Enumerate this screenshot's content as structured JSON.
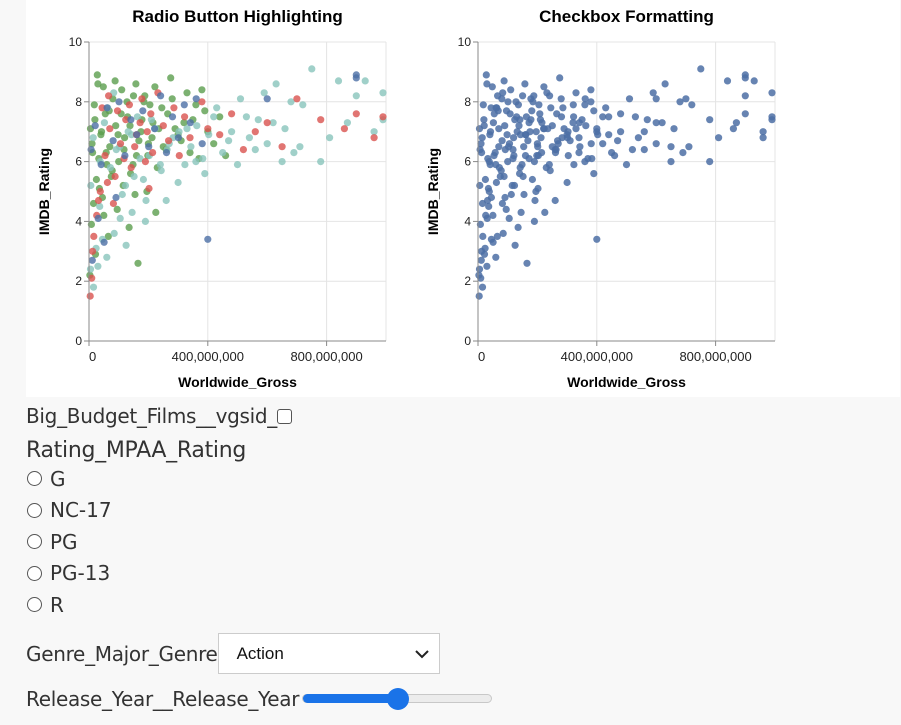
{
  "chart_data": [
    {
      "type": "scatter",
      "title": "Radio Button Highlighting",
      "xlabel": "Worldwide_Gross",
      "ylabel": "IMDB_Rating",
      "xlim": [
        0,
        1000000000
      ],
      "ylim": [
        0,
        10
      ],
      "x_ticks": [
        0,
        400000000,
        800000000
      ],
      "x_tick_labels": [
        "0",
        "400,000,000",
        "800,000,000"
      ],
      "y_ticks": [
        0,
        2,
        4,
        6,
        8,
        10
      ],
      "y_tick_labels": [
        "0",
        "2",
        "4",
        "6",
        "8",
        "10"
      ],
      "grid": true,
      "colored_by": "Rating_MPAA_Rating",
      "colors": [
        "#5b9e4d",
        "#88c4bc",
        "#d9534f",
        "#4c6fa5"
      ],
      "opacity": 0.8,
      "series": [
        {
          "color": "#5b9e4d",
          "points": [
            [
              5000000,
              7.1
            ],
            [
              12000000,
              6.3
            ],
            [
              18000000,
              7.9
            ],
            [
              25000000,
              5.4
            ],
            [
              30000000,
              8.6
            ],
            [
              40000000,
              6.9
            ],
            [
              45000000,
              4.8
            ],
            [
              55000000,
              7.6
            ],
            [
              60000000,
              5.9
            ],
            [
              70000000,
              6.5
            ],
            [
              80000000,
              8.1
            ],
            [
              90000000,
              7.2
            ],
            [
              100000000,
              6.0
            ],
            [
              110000000,
              8.4
            ],
            [
              120000000,
              6.8
            ],
            [
              130000000,
              7.5
            ],
            [
              140000000,
              5.6
            ],
            [
              150000000,
              8.2
            ],
            [
              160000000,
              6.2
            ],
            [
              175000000,
              7.0
            ],
            [
              185000000,
              8.0
            ],
            [
              200000000,
              6.6
            ],
            [
              215000000,
              7.3
            ],
            [
              230000000,
              5.8
            ],
            [
              245000000,
              7.8
            ],
            [
              260000000,
              6.4
            ],
            [
              275000000,
              8.8
            ],
            [
              290000000,
              7.1
            ],
            [
              310000000,
              6.7
            ],
            [
              330000000,
              8.3
            ],
            [
              350000000,
              7.4
            ],
            [
              370000000,
              6.1
            ],
            [
              390000000,
              7.7
            ],
            [
              8000000,
              3.9
            ],
            [
              15000000,
              4.6
            ],
            [
              22000000,
              2.9
            ],
            [
              35000000,
              5.1
            ],
            [
              50000000,
              4.2
            ],
            [
              65000000,
              3.5
            ],
            [
              75000000,
              5.5
            ],
            [
              95000000,
              4.4
            ],
            [
              115000000,
              5.2
            ],
            [
              135000000,
              3.8
            ],
            [
              155000000,
              4.9
            ],
            [
              165000000,
              2.6
            ],
            [
              195000000,
              5.0
            ],
            [
              225000000,
              4.3
            ],
            [
              3000000,
              2.2
            ],
            [
              10000000,
              6.6
            ],
            [
              20000000,
              7.4
            ],
            [
              28000000,
              8.9
            ],
            [
              33000000,
              6.1
            ],
            [
              42000000,
              7.0
            ],
            [
              48000000,
              8.5
            ],
            [
              58000000,
              6.3
            ],
            [
              68000000,
              7.7
            ],
            [
              78000000,
              5.7
            ],
            [
              88000000,
              8.7
            ],
            [
              98000000,
              6.9
            ],
            [
              108000000,
              7.6
            ],
            [
              118000000,
              6.4
            ],
            [
              128000000,
              8.0
            ],
            [
              138000000,
              7.2
            ],
            [
              148000000,
              5.9
            ],
            [
              158000000,
              8.6
            ],
            [
              168000000,
              6.7
            ],
            [
              178000000,
              7.4
            ],
            [
              188000000,
              8.2
            ],
            [
              198000000,
              6.2
            ],
            [
              205000000,
              7.9
            ],
            [
              212000000,
              6.8
            ],
            [
              222000000,
              8.5
            ],
            [
              235000000,
              7.1
            ],
            [
              250000000,
              6.5
            ],
            [
              265000000,
              7.6
            ],
            [
              280000000,
              8.1
            ],
            [
              300000000,
              6.9
            ],
            [
              320000000,
              7.3
            ],
            [
              340000000,
              6.3
            ],
            [
              360000000,
              7.9
            ],
            [
              380000000,
              8.4
            ],
            [
              400000000,
              7.0
            ],
            [
              420000000,
              6.6
            ],
            [
              440000000,
              7.5
            ],
            [
              460000000,
              6.2
            ]
          ]
        },
        {
          "color": "#88c4bc",
          "points": [
            [
              6000000,
              5.2
            ],
            [
              14000000,
              6.8
            ],
            [
              24000000,
              3.1
            ],
            [
              36000000,
              4.5
            ],
            [
              52000000,
              7.3
            ],
            [
              72000000,
              5.8
            ],
            [
              92000000,
              6.4
            ],
            [
              112000000,
              4.9
            ],
            [
              132000000,
              7.0
            ],
            [
              152000000,
              5.5
            ],
            [
              172000000,
              6.1
            ],
            [
              192000000,
              4.7
            ],
            [
              210000000,
              7.4
            ],
            [
              240000000,
              5.9
            ],
            [
              270000000,
              6.6
            ],
            [
              300000000,
              5.3
            ],
            [
              330000000,
              7.1
            ],
            [
              360000000,
              6.0
            ],
            [
              390000000,
              5.6
            ],
            [
              420000000,
              7.5
            ],
            [
              450000000,
              6.3
            ],
            [
              480000000,
              7.0
            ],
            [
              510000000,
              8.1
            ],
            [
              540000000,
              6.8
            ],
            [
              570000000,
              7.4
            ],
            [
              600000000,
              6.6
            ],
            [
              630000000,
              8.6
            ],
            [
              660000000,
              7.1
            ],
            [
              690000000,
              6.3
            ],
            [
              720000000,
              7.9
            ],
            [
              750000000,
              9.1
            ],
            [
              780000000,
              6.0
            ],
            [
              810000000,
              6.8
            ],
            [
              840000000,
              8.7
            ],
            [
              870000000,
              7.3
            ],
            [
              900000000,
              8.2
            ],
            [
              930000000,
              8.7
            ],
            [
              960000000,
              7.0
            ],
            [
              990000000,
              8.3
            ],
            [
              990000000,
              7.4
            ],
            [
              15000000,
              1.8
            ],
            [
              30000000,
              2.5
            ],
            [
              45000000,
              3.4
            ],
            [
              60000000,
              2.8
            ],
            [
              85000000,
              3.6
            ],
            [
              105000000,
              4.1
            ],
            [
              125000000,
              3.2
            ],
            [
              145000000,
              4.3
            ],
            [
              190000000,
              4.0
            ],
            [
              260000000,
              4.7
            ],
            [
              5000000,
              2.4
            ],
            [
              38000000,
              6.0
            ],
            [
              63000000,
              7.8
            ],
            [
              83000000,
              8.3
            ],
            [
              103000000,
              6.5
            ],
            [
              123000000,
              5.2
            ],
            [
              143000000,
              6.9
            ],
            [
              163000000,
              7.5
            ],
            [
              183000000,
              5.4
            ],
            [
              203000000,
              6.2
            ],
            [
              223000000,
              7.1
            ],
            [
              243000000,
              5.7
            ],
            [
              263000000,
              6.4
            ],
            [
              283000000,
              6.8
            ],
            [
              303000000,
              7.0
            ],
            [
              323000000,
              5.9
            ],
            [
              343000000,
              6.5
            ],
            [
              363000000,
              7.2
            ],
            [
              383000000,
              6.1
            ],
            [
              403000000,
              6.9
            ],
            [
              430000000,
              7.8
            ],
            [
              470000000,
              6.7
            ],
            [
              500000000,
              5.9
            ],
            [
              530000000,
              7.5
            ],
            [
              560000000,
              6.4
            ],
            [
              590000000,
              8.3
            ],
            [
              620000000,
              7.3
            ],
            [
              650000000,
              6.0
            ],
            [
              680000000,
              8.0
            ],
            [
              710000000,
              6.5
            ]
          ]
        },
        {
          "color": "#d9534f",
          "points": [
            [
              4000000,
              1.5
            ],
            [
              9000000,
              2.1
            ],
            [
              16000000,
              3.5
            ],
            [
              26000000,
              4.2
            ],
            [
              38000000,
              5.0
            ],
            [
              54000000,
              6.2
            ],
            [
              70000000,
              7.1
            ],
            [
              88000000,
              5.5
            ],
            [
              106000000,
              6.6
            ],
            [
              124000000,
              7.4
            ],
            [
              142000000,
              5.8
            ],
            [
              160000000,
              6.9
            ],
            [
              178000000,
              8.1
            ],
            [
              196000000,
              7.0
            ],
            [
              214000000,
              6.3
            ],
            [
              232000000,
              8.3
            ],
            [
              250000000,
              7.2
            ],
            [
              268000000,
              6.7
            ],
            [
              286000000,
              7.8
            ],
            [
              304000000,
              6.2
            ],
            [
              322000000,
              7.5
            ],
            [
              340000000,
              6.8
            ],
            [
              380000000,
              8.0
            ],
            [
              400000000,
              7.1
            ],
            [
              440000000,
              6.9
            ],
            [
              480000000,
              7.6
            ],
            [
              520000000,
              6.4
            ],
            [
              560000000,
              7.0
            ],
            [
              600000000,
              7.3
            ],
            [
              650000000,
              6.5
            ],
            [
              700000000,
              8.1
            ],
            [
              780000000,
              7.4
            ],
            [
              860000000,
              7.1
            ],
            [
              900000000,
              7.6
            ],
            [
              960000000,
              6.8
            ],
            [
              990000000,
              7.5
            ],
            [
              12000000,
              3.0
            ],
            [
              32000000,
              4.7
            ],
            [
              62000000,
              5.3
            ],
            [
              82000000,
              4.6
            ],
            [
              202000000,
              5.1
            ],
            [
              44000000,
              7.8
            ],
            [
              66000000,
              8.2
            ],
            [
              96000000,
              7.7
            ],
            [
              118000000,
              6.1
            ],
            [
              136000000,
              7.9
            ],
            [
              154000000,
              6.5
            ],
            [
              172000000,
              7.3
            ],
            [
              190000000,
              6.0
            ],
            [
              208000000,
              7.6
            ]
          ]
        },
        {
          "color": "#4c6fa5",
          "points": [
            [
              7000000,
              6.4
            ],
            [
              21000000,
              7.2
            ],
            [
              41000000,
              5.9
            ],
            [
              61000000,
              7.8
            ],
            [
              81000000,
              6.7
            ],
            [
              101000000,
              8.0
            ],
            [
              121000000,
              6.2
            ],
            [
              141000000,
              7.4
            ],
            [
              161000000,
              6.9
            ],
            [
              181000000,
              7.7
            ],
            [
              201000000,
              6.5
            ],
            [
              221000000,
              7.1
            ],
            [
              241000000,
              8.2
            ],
            [
              261000000,
              6.3
            ],
            [
              281000000,
              7.5
            ],
            [
              301000000,
              6.8
            ],
            [
              321000000,
              7.9
            ],
            [
              341000000,
              7.3
            ],
            [
              361000000,
              8.1
            ],
            [
              381000000,
              6.6
            ],
            [
              400000000,
              3.4
            ],
            [
              600000000,
              8.1
            ],
            [
              900000000,
              8.9
            ],
            [
              900000000,
              8.8
            ],
            [
              11000000,
              2.7
            ],
            [
              31000000,
              4.1
            ],
            [
              51000000,
              3.3
            ],
            [
              91000000,
              4.8
            ]
          ]
        }
      ]
    },
    {
      "type": "scatter",
      "title": "Checkbox Formatting",
      "xlabel": "Worldwide_Gross",
      "ylabel": "IMDB_Rating",
      "xlim": [
        0,
        1000000000
      ],
      "ylim": [
        0,
        10
      ],
      "x_ticks": [
        0,
        400000000,
        800000000
      ],
      "x_tick_labels": [
        "0",
        "400,000,000",
        "800,000,000"
      ],
      "y_ticks": [
        0,
        2,
        4,
        6,
        8,
        10
      ],
      "y_tick_labels": [
        "0",
        "2",
        "4",
        "6",
        "8",
        "10"
      ],
      "grid": true,
      "point_color": "#4c6fa5",
      "opacity": 0.85,
      "note_points": "same points as left chart, single color"
    }
  ],
  "controls": {
    "big_budget_label": "Big_Budget_Films__vgsid_",
    "big_budget_checked": false,
    "mpaa_title": "Rating_MPAA_Rating",
    "mpaa_options": [
      "G",
      "NC-17",
      "PG",
      "PG-13",
      "R"
    ],
    "mpaa_selected": null,
    "genre_label": "Genre_Major_Genre",
    "genre_value": "Action",
    "year_label": "Release_Year__Release_Year",
    "year_slider_fraction": 0.5
  }
}
